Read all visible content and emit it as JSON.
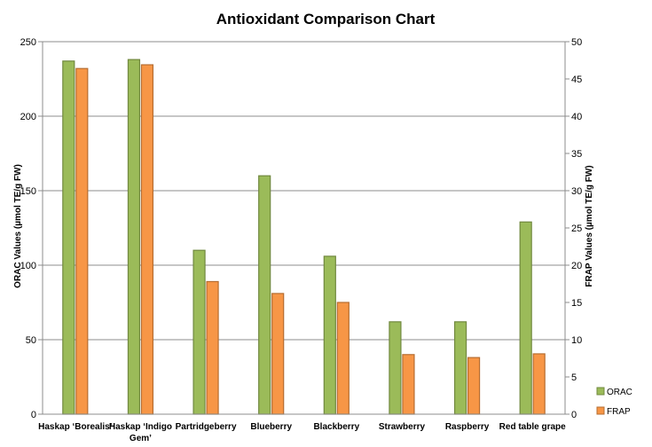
{
  "chart_data": {
    "type": "bar",
    "title": "Antioxidant Comparison Chart",
    "categories": [
      "Haskap 'Borealis'",
      "Haskap 'Indigo Gem'",
      "Partridgeberry",
      "Blueberry",
      "Blackberry",
      "Strawberry",
      "Raspberry",
      "Red table grape"
    ],
    "category_lines": [
      [
        "Haskap ‘Borealis’"
      ],
      [
        "Haskap ‘Indigo",
        "Gem’"
      ],
      [
        "Partridgeberry"
      ],
      [
        "Blueberry"
      ],
      [
        "Blackberry"
      ],
      [
        "Strawberry"
      ],
      [
        "Raspberry"
      ],
      [
        "Red table grape"
      ]
    ],
    "series": [
      {
        "name": "ORAC",
        "axis": "left",
        "color": "#9bbb59",
        "stroke": "#71893f",
        "values": [
          237,
          238,
          110,
          160,
          106,
          62,
          62,
          129
        ]
      },
      {
        "name": "FRAP",
        "axis": "right",
        "color": "#f79646",
        "stroke": "#b66d31",
        "values": [
          46.4,
          46.9,
          17.8,
          16.2,
          15.0,
          8.0,
          7.6,
          8.1
        ]
      }
    ],
    "ylabel": "ORAC Values (µmol TE/g FW)",
    "y2label": "FRAP Values (µmol TE/g FW)",
    "ylim": [
      0,
      250
    ],
    "y2lim": [
      0,
      50
    ],
    "yticks": [
      "0",
      "50",
      "100",
      "150",
      "200",
      "250"
    ],
    "y2ticks": [
      "0",
      "5",
      "10",
      "15",
      "20",
      "25",
      "30",
      "35",
      "40",
      "45",
      "50"
    ],
    "grid": true,
    "legend_position": "bottom-right"
  }
}
